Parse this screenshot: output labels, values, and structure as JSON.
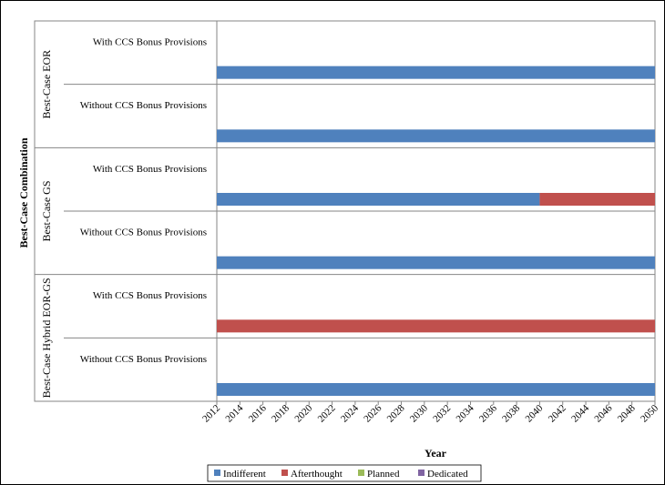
{
  "chart_data": {
    "type": "bar",
    "orientation": "horizontal-timeline",
    "xlabel": "Year",
    "ylabel": "Best-Case Combination",
    "xlim": [
      2012,
      2050
    ],
    "x_ticks": [
      "2012",
      "2014",
      "2016",
      "2018",
      "2020",
      "2022",
      "2024",
      "2026",
      "2028",
      "2030",
      "2032",
      "2034",
      "2036",
      "2038",
      "2040",
      "2042",
      "2044",
      "2046",
      "2048",
      "2050"
    ],
    "groups": [
      {
        "label": "Best-Case EOR",
        "rows": [
          {
            "label": "With CCS Bonus Provisions",
            "segments": [
              {
                "series": "Indifferent",
                "start": 2012,
                "end": 2050
              }
            ]
          },
          {
            "label": "Without CCS Bonus Provisions",
            "segments": [
              {
                "series": "Indifferent",
                "start": 2012,
                "end": 2050
              }
            ]
          }
        ]
      },
      {
        "label": "Best-Case GS",
        "rows": [
          {
            "label": "With CCS Bonus Provisions",
            "segments": [
              {
                "series": "Indifferent",
                "start": 2012,
                "end": 2040
              },
              {
                "series": "Afterthought",
                "start": 2040,
                "end": 2050
              }
            ]
          },
          {
            "label": "Without CCS Bonus Provisions",
            "segments": [
              {
                "series": "Indifferent",
                "start": 2012,
                "end": 2050
              }
            ]
          }
        ]
      },
      {
        "label": "Best-Case Hybrid EOR-GS",
        "rows": [
          {
            "label": "With CCS Bonus Provisions",
            "segments": [
              {
                "series": "Afterthought",
                "start": 2012,
                "end": 2050
              }
            ]
          },
          {
            "label": "Without CCS Bonus Provisions",
            "segments": [
              {
                "series": "Indifferent",
                "start": 2012,
                "end": 2050
              }
            ]
          }
        ]
      }
    ],
    "series": [
      {
        "name": "Indifferent",
        "color": "#4F81BD"
      },
      {
        "name": "Afterthought",
        "color": "#C0504D"
      },
      {
        "name": "Planned",
        "color": "#9BBB59"
      },
      {
        "name": "Dedicated",
        "color": "#8064A2"
      }
    ],
    "legend_position": "bottom",
    "grid": false
  }
}
